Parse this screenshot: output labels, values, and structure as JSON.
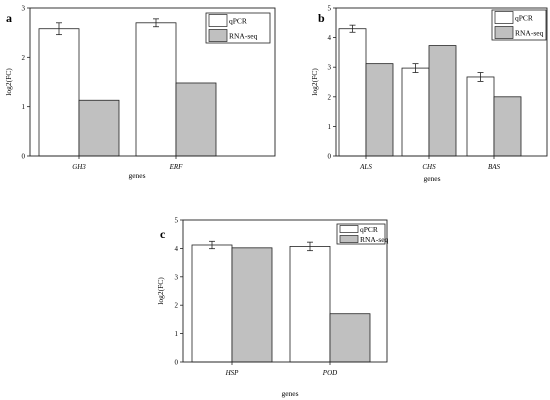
{
  "chart_data": [
    {
      "type": "bar",
      "panel_label": "a",
      "categories": [
        "GH3",
        "ERF"
      ],
      "series": [
        {
          "name": "qPCR",
          "values": [
            2.58,
            2.7
          ],
          "errors": [
            0.12,
            0.08
          ],
          "color": "#ffffff"
        },
        {
          "name": "RNA-seq",
          "values": [
            1.13,
            1.48
          ],
          "color": "#c0c0c0"
        }
      ],
      "xlabel": "genes",
      "ylabel": "log2(FC)",
      "ylim": [
        0,
        3
      ],
      "yticks": [
        "0",
        "1",
        "2",
        "3"
      ],
      "legend_position": "top-right",
      "grid": false
    },
    {
      "type": "bar",
      "panel_label": "b",
      "categories": [
        "ALS",
        "CHS",
        "BAS"
      ],
      "series": [
        {
          "name": "qPCR",
          "values": [
            4.3,
            2.97,
            2.67
          ],
          "errors": [
            0.12,
            0.15,
            0.15
          ],
          "color": "#ffffff"
        },
        {
          "name": "RNA-seq",
          "values": [
            3.12,
            3.73,
            2.0
          ],
          "color": "#c0c0c0"
        }
      ],
      "xlabel": "genes",
      "ylabel": "log2(FC)",
      "ylim": [
        0,
        5
      ],
      "yticks": [
        "0",
        "1",
        "2",
        "3",
        "4",
        "5"
      ],
      "legend_position": "top-right",
      "grid": false
    },
    {
      "type": "bar",
      "panel_label": "c",
      "categories": [
        "HSP",
        "POD"
      ],
      "series": [
        {
          "name": "qPCR",
          "values": [
            4.12,
            4.07
          ],
          "errors": [
            0.13,
            0.15
          ],
          "color": "#ffffff"
        },
        {
          "name": "RNA-seq",
          "values": [
            4.02,
            1.7
          ],
          "color": "#c0c0c0"
        }
      ],
      "xlabel": "genes",
      "ylabel": "log2(FC)",
      "ylim": [
        0,
        5
      ],
      "yticks": [
        "0",
        "1",
        "2",
        "3",
        "4",
        "5"
      ],
      "legend_position": "top-right",
      "grid": false
    }
  ]
}
